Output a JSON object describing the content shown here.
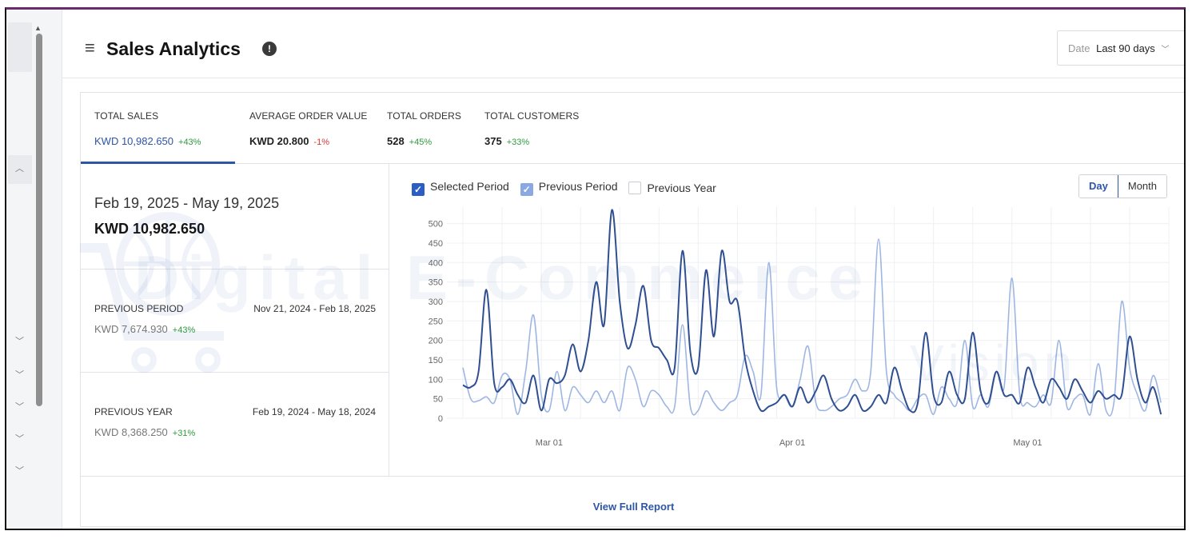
{
  "header": {
    "title": "Sales Analytics",
    "date_label": "Date",
    "date_value": "Last 90 days"
  },
  "stats": [
    {
      "label": "TOTAL SALES",
      "value": "KWD 10,982.650",
      "change": "+43%",
      "trend": "up",
      "active": true
    },
    {
      "label": "AVERAGE ORDER VALUE",
      "value": "KWD 20.800",
      "change": "-1%",
      "trend": "down",
      "active": false
    },
    {
      "label": "TOTAL ORDERS",
      "value": "528",
      "change": "+45%",
      "trend": "up",
      "active": false
    },
    {
      "label": "TOTAL CUSTOMERS",
      "value": "375",
      "change": "+33%",
      "trend": "up",
      "active": false
    }
  ],
  "summary": {
    "range": "Feb 19, 2025 - May 19, 2025",
    "total": "KWD 10,982.650",
    "previous_period": {
      "label": "PREVIOUS PERIOD",
      "dates": "Nov 21, 2024 - Feb 18, 2025",
      "value": "KWD 7,674.930",
      "change": "+43%"
    },
    "previous_year": {
      "label": "PREVIOUS YEAR",
      "dates": "Feb 19, 2024 - May 18, 2024",
      "value": "KWD 8,368.250",
      "change": "+31%"
    }
  },
  "legend": [
    {
      "label": "Selected Period",
      "checked": true,
      "color": "#2b5ec4"
    },
    {
      "label": "Previous Period",
      "checked": true,
      "color": "#8aa9e2"
    },
    {
      "label": "Previous Year",
      "checked": false,
      "color": "#ffffff"
    }
  ],
  "toggle": {
    "day": "Day",
    "month": "Month",
    "selected": "Day"
  },
  "footer": {
    "view_full_report": "View Full Report"
  },
  "watermark": {
    "main": "Digital E-Commerce",
    "sub": "Vision"
  },
  "colors": {
    "accent": "#2d55a8",
    "selected_series": "#2f4f91",
    "previous_series": "#9fb6e3",
    "positive": "#2e9a3e",
    "negative": "#d93636"
  },
  "chart_data": {
    "type": "line",
    "x_tick_labels": [
      "Mar 01",
      "Apr 01",
      "May 01"
    ],
    "x_tick_positions": [
      11,
      42,
      72
    ],
    "y_ticks": [
      0,
      50,
      100,
      150,
      200,
      250,
      300,
      350,
      400,
      450,
      500
    ],
    "ylim": [
      0,
      530
    ],
    "xlim": [
      0,
      90
    ],
    "series": [
      {
        "name": "Selected Period",
        "color": "#2f4f91",
        "values": [
          85,
          80,
          120,
          330,
          90,
          80,
          100,
          60,
          40,
          110,
          20,
          100,
          90,
          110,
          190,
          120,
          200,
          350,
          240,
          535,
          300,
          180,
          240,
          340,
          200,
          180,
          150,
          130,
          430,
          170,
          130,
          380,
          210,
          430,
          300,
          300,
          150,
          70,
          20,
          30,
          40,
          60,
          30,
          80,
          40,
          70,
          110,
          50,
          20,
          30,
          60,
          20,
          30,
          60,
          40,
          130,
          70,
          20,
          40,
          220,
          60,
          40,
          120,
          60,
          50,
          220,
          70,
          40,
          120,
          60,
          60,
          40,
          130,
          80,
          40,
          100,
          80,
          50,
          100,
          70,
          40,
          70,
          50,
          60,
          60,
          210,
          100,
          40,
          80,
          10
        ]
      },
      {
        "name": "Previous Period",
        "color": "#9fb6e3",
        "values": [
          130,
          50,
          45,
          55,
          40,
          110,
          100,
          10,
          120,
          265,
          60,
          20,
          120,
          20,
          80,
          60,
          40,
          70,
          40,
          70,
          20,
          130,
          100,
          30,
          70,
          60,
          30,
          30,
          240,
          30,
          20,
          70,
          40,
          20,
          40,
          60,
          160,
          120,
          60,
          400,
          80,
          60,
          30,
          100,
          185,
          40,
          20,
          30,
          50,
          60,
          100,
          70,
          120,
          460,
          120,
          60,
          40,
          20,
          50,
          60,
          10,
          80,
          50,
          40,
          200,
          30,
          60,
          30,
          120,
          80,
          360,
          60,
          40,
          30,
          60,
          40,
          200,
          30,
          50,
          60,
          10,
          140,
          20,
          40,
          300,
          130,
          60,
          20,
          110,
          40
        ]
      }
    ]
  }
}
